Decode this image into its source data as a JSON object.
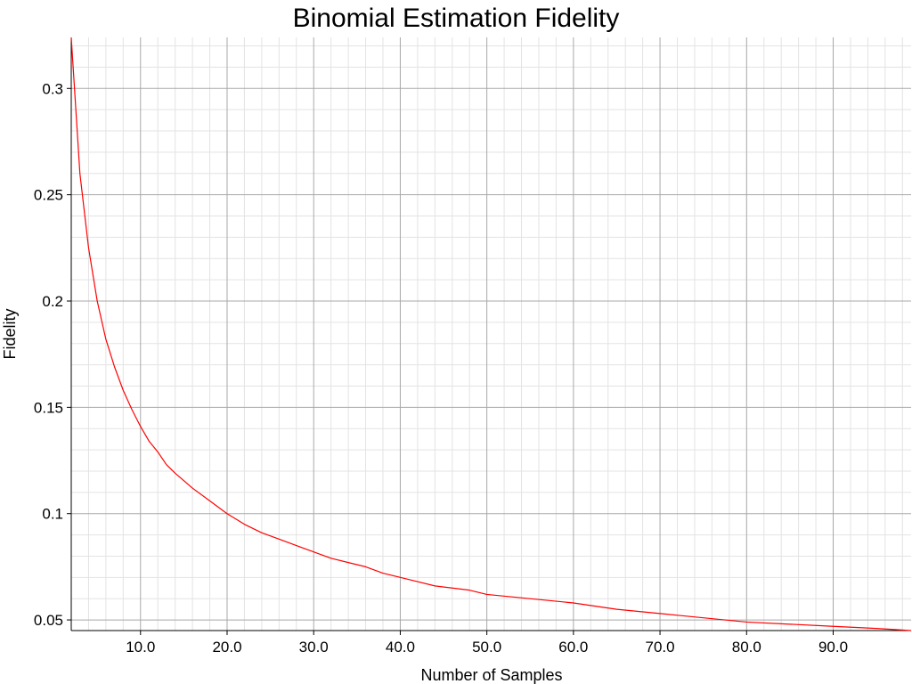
{
  "chart_data": {
    "type": "line",
    "title": "Binomial Estimation Fidelity",
    "xlabel": "Number of Samples",
    "ylabel": "Fidelity",
    "xlim": [
      2,
      99
    ],
    "ylim": [
      0.045,
      0.324
    ],
    "xticks": [
      10,
      20,
      30,
      40,
      50,
      60,
      70,
      80,
      90
    ],
    "xtick_labels": [
      "10.0",
      "20.0",
      "30.0",
      "40.0",
      "50.0",
      "60.0",
      "70.0",
      "80.0",
      "90.0"
    ],
    "yticks": [
      0.05,
      0.1,
      0.15,
      0.2,
      0.25,
      0.3
    ],
    "ytick_labels": [
      "0.05",
      "0.1",
      "0.15",
      "0.2",
      "0.25",
      "0.3"
    ],
    "grid": true,
    "legend": "none",
    "series": [
      {
        "color": "#ff0000",
        "x": [
          2,
          3,
          4,
          5,
          6,
          7,
          8,
          9,
          10,
          11,
          12,
          13,
          14,
          16,
          18,
          20,
          22,
          24,
          26,
          28,
          30,
          32,
          34,
          36,
          38,
          40,
          42,
          44,
          46,
          48,
          50,
          55,
          60,
          65,
          70,
          75,
          80,
          85,
          90,
          95,
          99
        ],
        "y": [
          0.324,
          0.26,
          0.225,
          0.2,
          0.182,
          0.169,
          0.158,
          0.149,
          0.141,
          0.134,
          0.129,
          0.123,
          0.119,
          0.112,
          0.106,
          0.1,
          0.095,
          0.091,
          0.088,
          0.085,
          0.082,
          0.079,
          0.077,
          0.075,
          0.072,
          0.07,
          0.068,
          0.066,
          0.065,
          0.064,
          0.062,
          0.06,
          0.058,
          0.055,
          0.053,
          0.051,
          0.049,
          0.048,
          0.047,
          0.046,
          0.045
        ]
      }
    ]
  }
}
